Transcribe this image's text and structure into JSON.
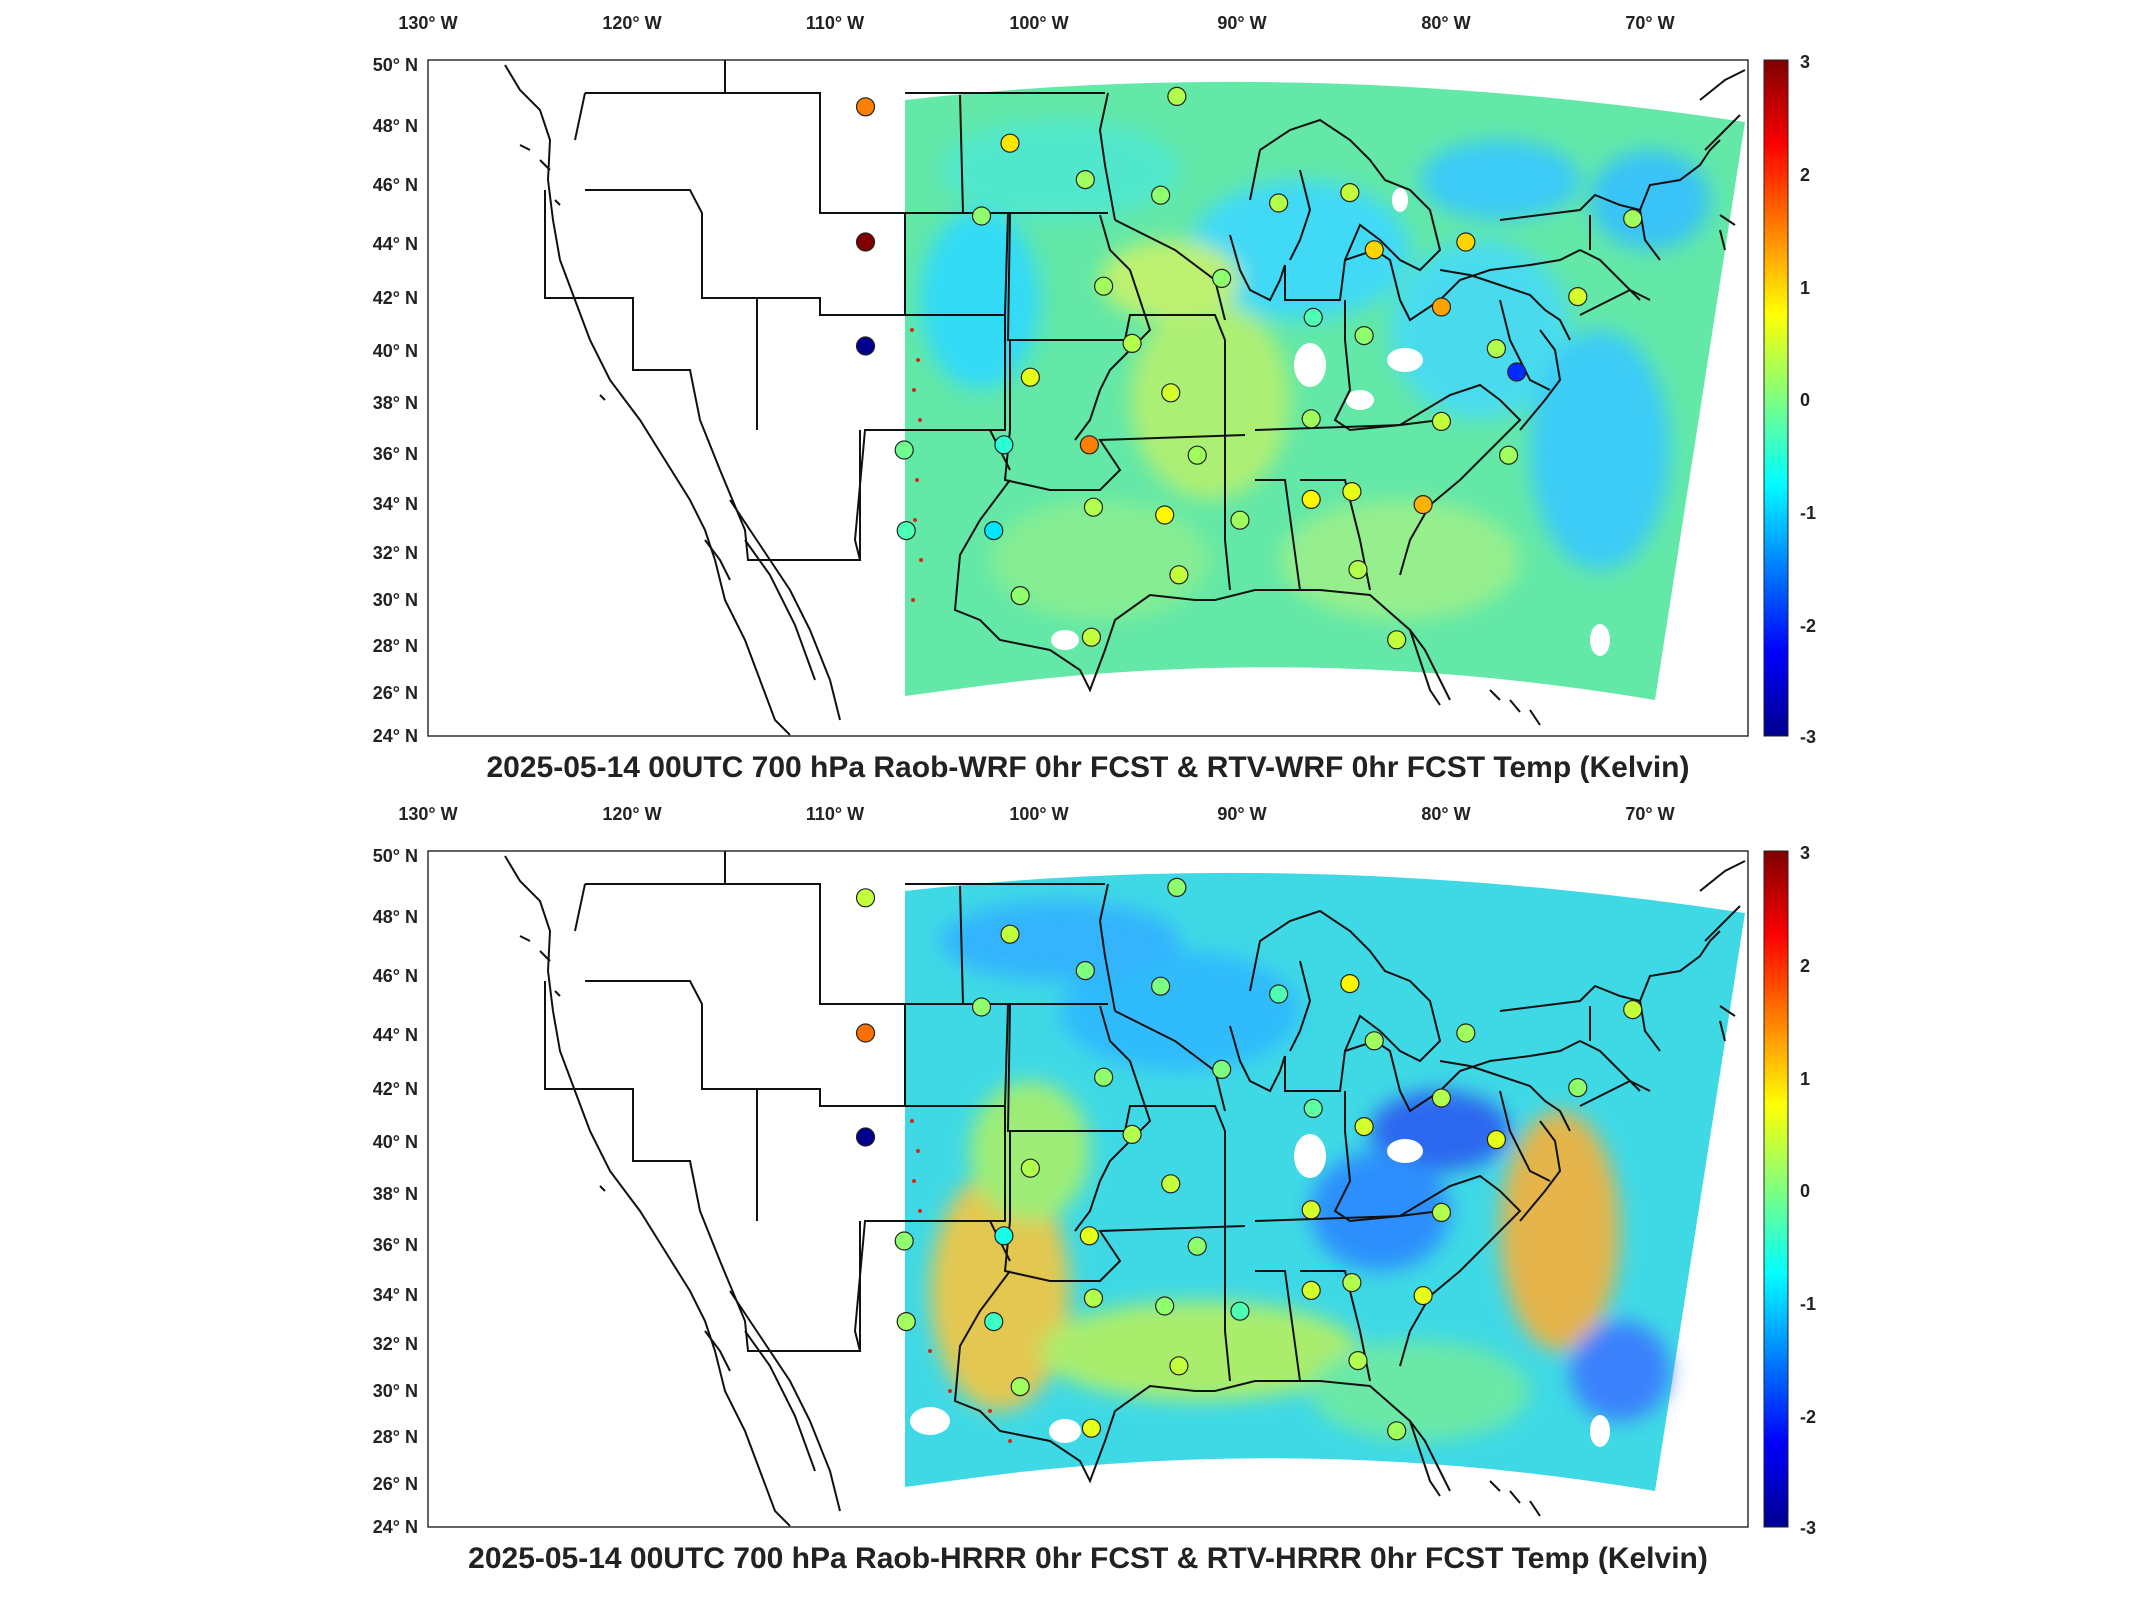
{
  "panels": [
    {
      "title": "2025-05-14 00UTC 700 hPa Raob-WRF 0hr FCST & RTV-WRF 0hr FCST Temp (Kelvin)",
      "lon_ticks": [
        "130° W",
        "120° W",
        "110° W",
        "100° W",
        "90° W",
        "80° W",
        "70° W"
      ],
      "lat_ticks": [
        "50° N",
        "48° N",
        "46° N",
        "44° N",
        "42° N",
        "40° N",
        "38° N",
        "36° N",
        "34° N",
        "32° N",
        "30° N",
        "28° N",
        "26° N",
        "24° N"
      ],
      "colorbar": {
        "ticks": [
          "3",
          "2",
          "1",
          "0",
          "-1",
          "-2",
          "-3"
        ],
        "min": -3,
        "max": 3
      },
      "raob_stations": [
        {
          "lon": -108.5,
          "lat": 48.2,
          "value": 1.5
        },
        {
          "lon": -101.4,
          "lat": 46.8,
          "value": 0.9
        },
        {
          "lon": -97.7,
          "lat": 45.4,
          "value": 0.2
        },
        {
          "lon": -93.2,
          "lat": 48.6,
          "value": 0.3
        },
        {
          "lon": -94.0,
          "lat": 44.8,
          "value": 0.1
        },
        {
          "lon": -102.8,
          "lat": 44.0,
          "value": 0.1
        },
        {
          "lon": -108.5,
          "lat": 43.0,
          "value": 3.0
        },
        {
          "lon": -108.5,
          "lat": 39.0,
          "value": -3.0
        },
        {
          "lon": -96.8,
          "lat": 41.3,
          "value": 0.2
        },
        {
          "lon": -91.0,
          "lat": 41.6,
          "value": 0.1
        },
        {
          "lon": -88.2,
          "lat": 44.5,
          "value": 0.3
        },
        {
          "lon": -84.7,
          "lat": 44.9,
          "value": 0.4
        },
        {
          "lon": -83.5,
          "lat": 42.7,
          "value": 1.0
        },
        {
          "lon": -79.0,
          "lat": 43.0,
          "value": 1.0
        },
        {
          "lon": -80.2,
          "lat": 40.5,
          "value": 1.3
        },
        {
          "lon": -86.5,
          "lat": 40.1,
          "value": -0.3
        },
        {
          "lon": -84.0,
          "lat": 39.4,
          "value": 0.1
        },
        {
          "lon": -77.5,
          "lat": 38.9,
          "value": 0.3
        },
        {
          "lon": -76.5,
          "lat": 38.0,
          "value": -2.0
        },
        {
          "lon": -73.5,
          "lat": 40.9,
          "value": 0.5
        },
        {
          "lon": -70.8,
          "lat": 43.9,
          "value": 0.2
        },
        {
          "lon": -95.4,
          "lat": 39.1,
          "value": 0.3
        },
        {
          "lon": -100.4,
          "lat": 37.8,
          "value": 0.6
        },
        {
          "lon": -93.5,
          "lat": 37.2,
          "value": 0.5
        },
        {
          "lon": -86.6,
          "lat": 36.2,
          "value": 0.2
        },
        {
          "lon": -80.2,
          "lat": 36.1,
          "value": 0.4
        },
        {
          "lon": -76.9,
          "lat": 34.8,
          "value": 0.2
        },
        {
          "lon": -97.5,
          "lat": 35.2,
          "value": 1.5
        },
        {
          "lon": -92.2,
          "lat": 34.8,
          "value": 0.2
        },
        {
          "lon": -101.7,
          "lat": 35.2,
          "value": -0.5
        },
        {
          "lon": -106.6,
          "lat": 35.0,
          "value": -0.1
        },
        {
          "lon": -106.5,
          "lat": 31.9,
          "value": -0.3
        },
        {
          "lon": -102.2,
          "lat": 31.9,
          "value": -0.9
        },
        {
          "lon": -97.3,
          "lat": 32.8,
          "value": 0.3
        },
        {
          "lon": -93.8,
          "lat": 32.5,
          "value": 0.8
        },
        {
          "lon": -90.1,
          "lat": 32.3,
          "value": 0.2
        },
        {
          "lon": -86.6,
          "lat": 33.1,
          "value": 0.8
        },
        {
          "lon": -84.6,
          "lat": 33.4,
          "value": 0.6
        },
        {
          "lon": -81.1,
          "lat": 32.9,
          "value": 1.2
        },
        {
          "lon": -100.9,
          "lat": 29.4,
          "value": 0.1
        },
        {
          "lon": -97.4,
          "lat": 27.8,
          "value": 0.4
        },
        {
          "lon": -93.1,
          "lat": 30.2,
          "value": 0.4
        },
        {
          "lon": -84.3,
          "lat": 30.4,
          "value": 0.3
        },
        {
          "lon": -82.4,
          "lat": 27.7,
          "value": 0.4
        }
      ]
    },
    {
      "title": "2025-05-14 00UTC 700 hPa Raob-HRRR 0hr FCST & RTV-HRRR 0hr FCST Temp (Kelvin)",
      "lon_ticks": [
        "130° W",
        "120° W",
        "110° W",
        "100° W",
        "90° W",
        "80° W",
        "70° W"
      ],
      "lat_ticks": [
        "50° N",
        "48° N",
        "46° N",
        "44° N",
        "42° N",
        "40° N",
        "38° N",
        "36° N",
        "34° N",
        "32° N",
        "30° N",
        "28° N",
        "26° N",
        "24° N"
      ],
      "colorbar": {
        "ticks": [
          "3",
          "2",
          "1",
          "0",
          "-1",
          "-2",
          "-3"
        ],
        "min": -3,
        "max": 3
      },
      "raob_stations": [
        {
          "lon": -108.5,
          "lat": 48.2,
          "value": 0.4
        },
        {
          "lon": -101.4,
          "lat": 46.8,
          "value": 0.4
        },
        {
          "lon": -97.7,
          "lat": 45.4,
          "value": 0.0
        },
        {
          "lon": -93.2,
          "lat": 48.6,
          "value": 0.1
        },
        {
          "lon": -94.0,
          "lat": 44.8,
          "value": 0.0
        },
        {
          "lon": -102.8,
          "lat": 44.0,
          "value": 0.1
        },
        {
          "lon": -108.5,
          "lat": 43.0,
          "value": 1.6
        },
        {
          "lon": -108.5,
          "lat": 39.0,
          "value": -3.0
        },
        {
          "lon": -96.8,
          "lat": 41.3,
          "value": 0.1
        },
        {
          "lon": -91.0,
          "lat": 41.6,
          "value": 0.0
        },
        {
          "lon": -88.2,
          "lat": 44.5,
          "value": -0.3
        },
        {
          "lon": -84.7,
          "lat": 44.9,
          "value": 0.8
        },
        {
          "lon": -83.5,
          "lat": 42.7,
          "value": 0.2
        },
        {
          "lon": -79.0,
          "lat": 43.0,
          "value": 0.2
        },
        {
          "lon": -80.2,
          "lat": 40.5,
          "value": 0.3
        },
        {
          "lon": -86.5,
          "lat": 40.1,
          "value": -0.2
        },
        {
          "lon": -84.0,
          "lat": 39.4,
          "value": 0.5
        },
        {
          "lon": -77.5,
          "lat": 38.9,
          "value": 0.6
        },
        {
          "lon": -73.5,
          "lat": 40.9,
          "value": 0.1
        },
        {
          "lon": -70.8,
          "lat": 43.9,
          "value": 0.4
        },
        {
          "lon": -95.4,
          "lat": 39.1,
          "value": 0.3
        },
        {
          "lon": -100.4,
          "lat": 37.8,
          "value": 0.3
        },
        {
          "lon": -93.5,
          "lat": 37.2,
          "value": 0.4
        },
        {
          "lon": -86.6,
          "lat": 36.2,
          "value": 0.5
        },
        {
          "lon": -80.2,
          "lat": 36.1,
          "value": 0.3
        },
        {
          "lon": -97.5,
          "lat": 35.2,
          "value": 0.6
        },
        {
          "lon": -92.2,
          "lat": 34.8,
          "value": 0.1
        },
        {
          "lon": -101.7,
          "lat": 35.2,
          "value": -0.6
        },
        {
          "lon": -106.6,
          "lat": 35.0,
          "value": 0.1
        },
        {
          "lon": -106.5,
          "lat": 31.9,
          "value": 0.2
        },
        {
          "lon": -102.2,
          "lat": 31.9,
          "value": -0.4
        },
        {
          "lon": -97.3,
          "lat": 32.8,
          "value": 0.3
        },
        {
          "lon": -93.8,
          "lat": 32.5,
          "value": 0.1
        },
        {
          "lon": -90.1,
          "lat": 32.3,
          "value": -0.3
        },
        {
          "lon": -86.6,
          "lat": 33.1,
          "value": 0.5
        },
        {
          "lon": -84.6,
          "lat": 33.4,
          "value": 0.3
        },
        {
          "lon": -81.1,
          "lat": 32.9,
          "value": 0.6
        },
        {
          "lon": -100.9,
          "lat": 29.4,
          "value": 0.2
        },
        {
          "lon": -97.4,
          "lat": 27.8,
          "value": 0.6
        },
        {
          "lon": -93.1,
          "lat": 30.2,
          "value": 0.4
        },
        {
          "lon": -84.3,
          "lat": 30.4,
          "value": 0.3
        },
        {
          "lon": -82.4,
          "lat": 27.7,
          "value": 0.2
        }
      ]
    }
  ]
}
